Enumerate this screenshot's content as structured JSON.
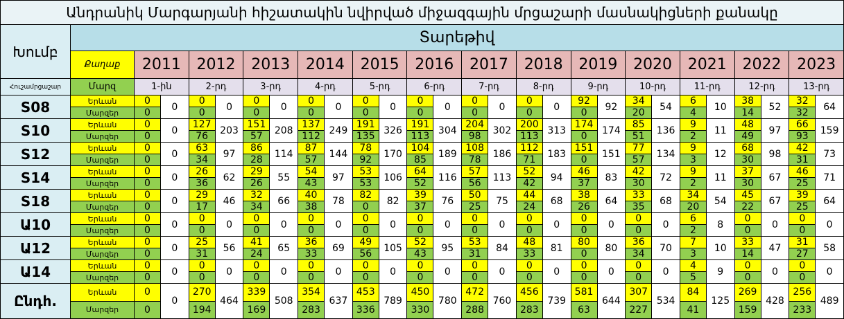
{
  "title": "Անդրանիկ Մարգարյանի հիշատակին նվիրված միջազգային մրցաշարի մասնակիցների քանակը",
  "header": {
    "group": "Խումբ",
    "year_label": "Տարեթիվ",
    "city": "Քաղաք",
    "memorial": "Հուշամրցաշար",
    "region": "Մարզ",
    "years": [
      "2011",
      "2012",
      "2013",
      "2014",
      "2015",
      "2016",
      "2017",
      "2018",
      "2019",
      "2020",
      "2021",
      "2022",
      "2023"
    ],
    "editions": [
      "1-ին",
      "2-րդ",
      "3-րդ",
      "4-րդ",
      "5-րդ",
      "6-րդ",
      "7-րդ",
      "8-րդ",
      "9-րդ",
      "10-րդ",
      "11-րդ",
      "12-րդ",
      "13-րդ"
    ]
  },
  "rows": [
    {
      "group": "S08",
      "yerevan_label": "Երևան",
      "regions_label": "Մարզեր",
      "yerevan": [
        0,
        0,
        0,
        0,
        0,
        0,
        0,
        0,
        92,
        34,
        6,
        38,
        32
      ],
      "regions": [
        0,
        0,
        0,
        0,
        0,
        0,
        0,
        0,
        0,
        20,
        4,
        14,
        32
      ],
      "total": [
        0,
        0,
        0,
        0,
        0,
        0,
        0,
        0,
        92,
        54,
        10,
        52,
        64
      ]
    },
    {
      "group": "S10",
      "yerevan_label": "Երևան",
      "regions_label": "Մարզեր",
      "yerevan": [
        0,
        127,
        151,
        137,
        191,
        191,
        204,
        200,
        174,
        85,
        9,
        48,
        66
      ],
      "regions": [
        0,
        76,
        57,
        112,
        135,
        113,
        98,
        113,
        0,
        51,
        2,
        49,
        93
      ],
      "total": [
        0,
        203,
        208,
        249,
        326,
        304,
        302,
        313,
        174,
        136,
        11,
        97,
        159
      ]
    },
    {
      "group": "S12",
      "yerevan_label": "Երևան",
      "regions_label": "Մարզեր",
      "yerevan": [
        0,
        63,
        86,
        87,
        78,
        104,
        108,
        112,
        151,
        77,
        9,
        68,
        42
      ],
      "regions": [
        0,
        34,
        28,
        57,
        92,
        85,
        78,
        71,
        0,
        57,
        3,
        30,
        31
      ],
      "total": [
        0,
        97,
        114,
        144,
        170,
        189,
        186,
        183,
        151,
        134,
        12,
        98,
        73
      ]
    },
    {
      "group": "S14",
      "yerevan_label": "Երևան",
      "regions_label": "Մարզեր",
      "yerevan": [
        0,
        26,
        29,
        54,
        53,
        64,
        57,
        52,
        46,
        42,
        9,
        37,
        46
      ],
      "regions": [
        0,
        36,
        26,
        43,
        53,
        52,
        56,
        42,
        37,
        30,
        2,
        30,
        25
      ],
      "total": [
        0,
        62,
        55,
        97,
        106,
        116,
        113,
        94,
        83,
        72,
        11,
        67,
        71
      ]
    },
    {
      "group": "S18",
      "yerevan_label": "Երևան",
      "regions_label": "Մարզեր",
      "yerevan": [
        0,
        29,
        32,
        40,
        82,
        39,
        50,
        44,
        38,
        33,
        34,
        45,
        39
      ],
      "regions": [
        0,
        17,
        34,
        38,
        0,
        37,
        25,
        24,
        26,
        35,
        20,
        22,
        25
      ],
      "total": [
        0,
        46,
        66,
        78,
        82,
        76,
        75,
        68,
        64,
        68,
        54,
        67,
        64
      ]
    },
    {
      "group": "Ա10",
      "yerevan_label": "Երևան",
      "regions_label": "Մարզեր",
      "yerevan": [
        0,
        0,
        0,
        0,
        0,
        0,
        0,
        0,
        0,
        0,
        6,
        0,
        0
      ],
      "regions": [
        0,
        0,
        0,
        0,
        0,
        0,
        0,
        0,
        0,
        0,
        2,
        0,
        0
      ],
      "total": [
        0,
        0,
        0,
        0,
        0,
        0,
        0,
        0,
        0,
        0,
        8,
        0,
        0
      ]
    },
    {
      "group": "Ա12",
      "yerevan_label": "Երևան",
      "regions_label": "Մարզեր",
      "yerevan": [
        0,
        25,
        41,
        36,
        49,
        52,
        53,
        48,
        80,
        36,
        7,
        33,
        31
      ],
      "regions": [
        0,
        31,
        24,
        33,
        56,
        43,
        31,
        33,
        0,
        34,
        3,
        14,
        27
      ],
      "total": [
        0,
        56,
        65,
        69,
        105,
        95,
        84,
        81,
        80,
        70,
        10,
        47,
        58
      ]
    },
    {
      "group": "Ա14",
      "yerevan_label": "Երևան",
      "regions_label": "Մարզեր",
      "yerevan": [
        0,
        0,
        0,
        0,
        0,
        0,
        0,
        0,
        0,
        0,
        4,
        0,
        0
      ],
      "regions": [
        0,
        0,
        0,
        0,
        0,
        0,
        0,
        0,
        0,
        0,
        5,
        0,
        0
      ],
      "total": [
        0,
        0,
        0,
        0,
        0,
        0,
        0,
        0,
        0,
        0,
        9,
        0,
        0
      ]
    },
    {
      "group": "Ընդհ.",
      "yerevan_label": "Երևան",
      "regions_label": "Մարզեր",
      "yerevan": [
        0,
        270,
        339,
        354,
        453,
        450,
        472,
        456,
        581,
        307,
        84,
        269,
        256
      ],
      "regions": [
        0,
        194,
        169,
        283,
        336,
        330,
        288,
        283,
        63,
        227,
        41,
        159,
        233
      ],
      "total": [
        0,
        464,
        508,
        637,
        789,
        780,
        760,
        739,
        644,
        534,
        125,
        428,
        489
      ]
    }
  ]
}
